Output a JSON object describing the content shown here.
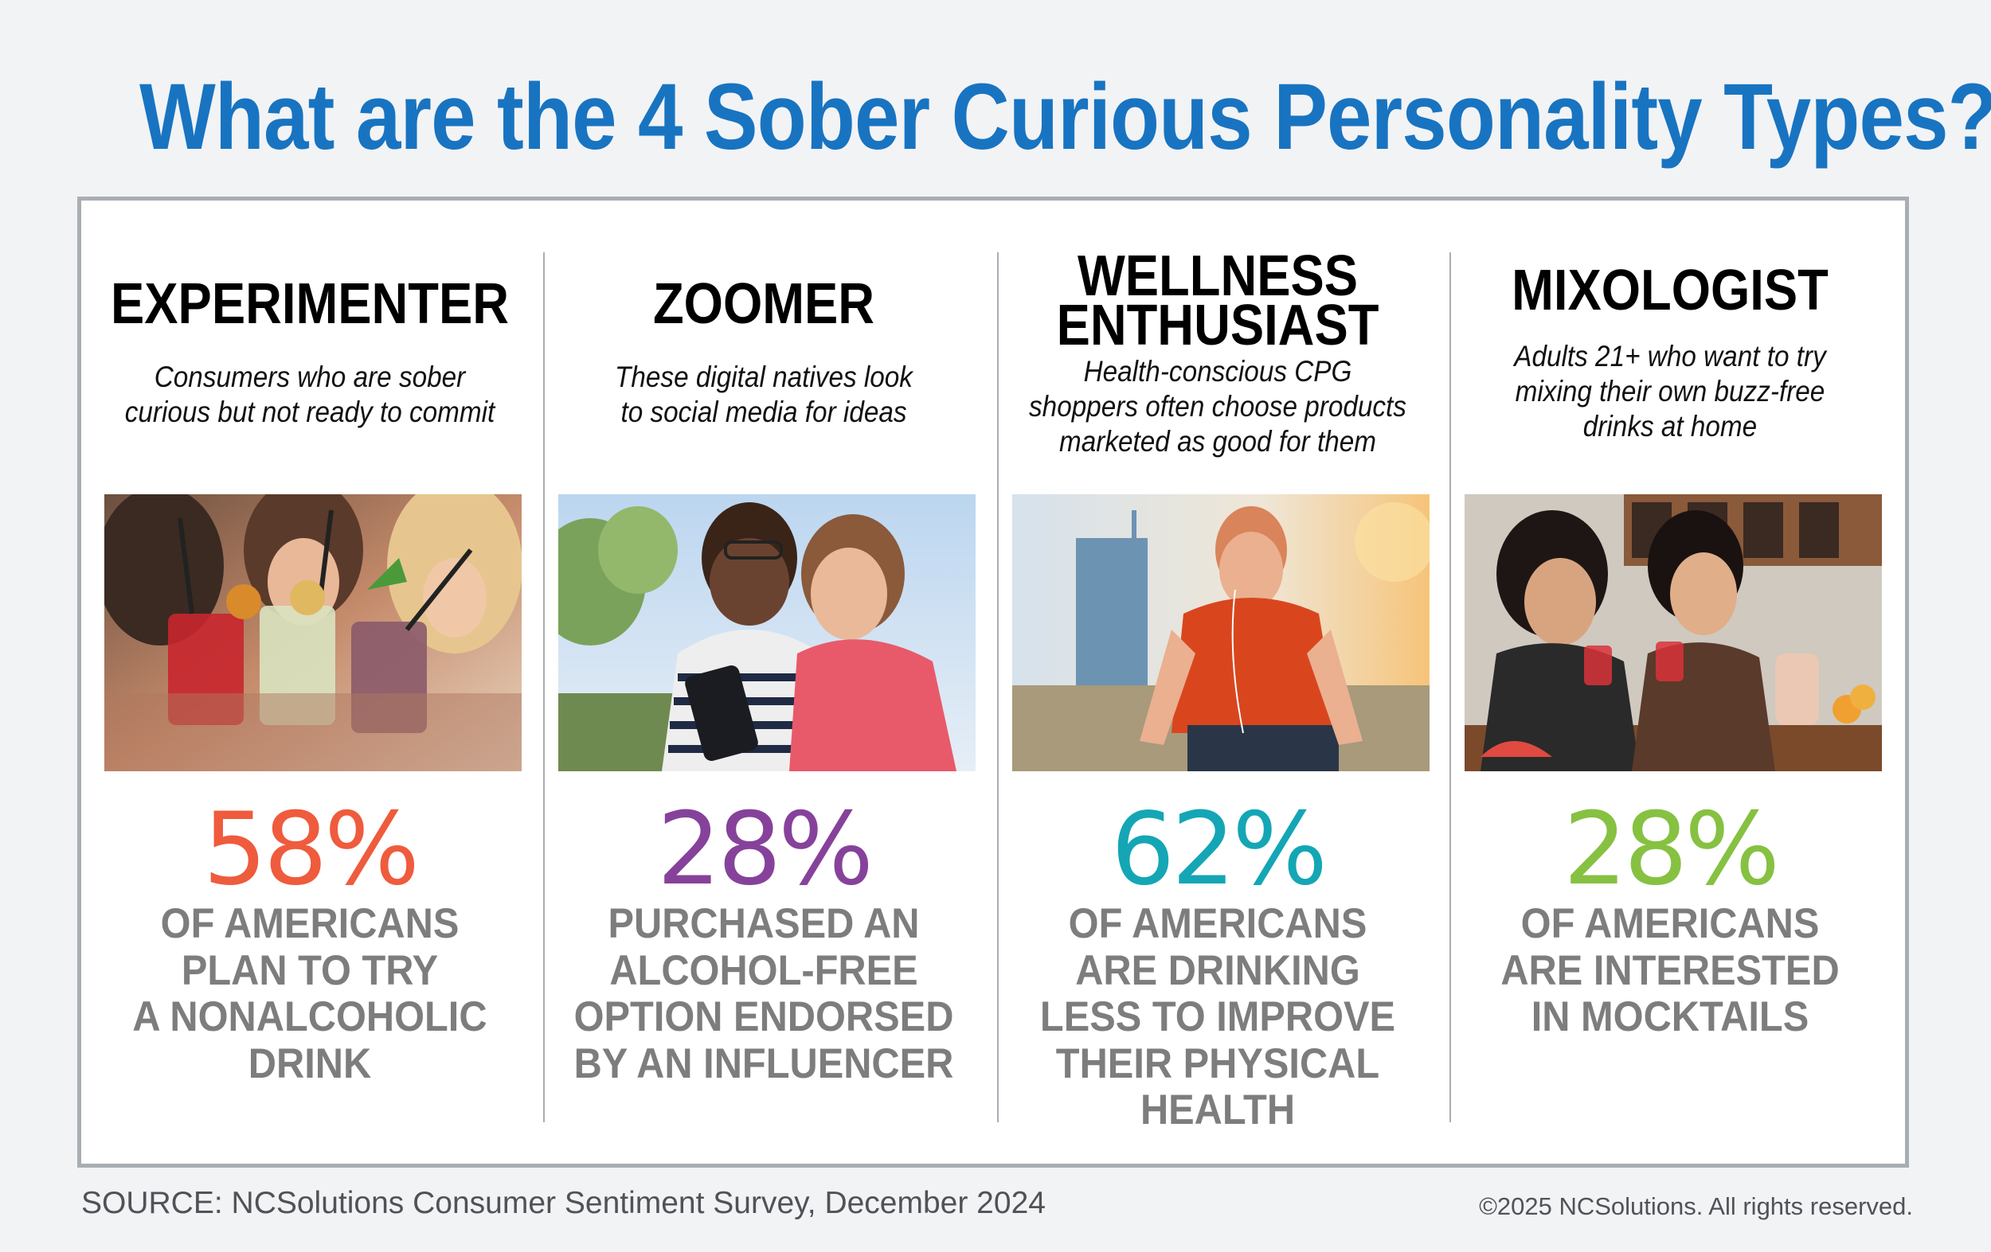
{
  "title": "What are the 4 Sober Curious Personality Types?",
  "columns": [
    {
      "name_lines": [
        "EXPERIMENTER"
      ],
      "desc_lines": [
        "Consumers who are sober",
        "curious but not ready to commit"
      ],
      "percent": "58%",
      "percent_color": "#ef5b3d",
      "stat_lines": [
        "OF AMERICANS",
        "PLAN TO TRY",
        "A NONALCOHOLIC",
        "DRINK"
      ]
    },
    {
      "name_lines": [
        "ZOOMER"
      ],
      "desc_lines": [
        "These digital natives look",
        "to social media for ideas"
      ],
      "percent": "28%",
      "percent_color": "#86429a",
      "stat_lines": [
        "PURCHASED AN",
        "ALCOHOL-FREE",
        "OPTION ENDORSED",
        "BY AN INFLUENCER"
      ]
    },
    {
      "name_lines": [
        "WELLNESS",
        "ENTHUSIAST"
      ],
      "desc_lines": [
        "Health-conscious CPG",
        "shoppers often choose products",
        "marketed as good for them"
      ],
      "percent": "62%",
      "percent_color": "#14a6b5",
      "stat_lines": [
        "OF AMERICANS",
        "ARE DRINKING",
        "LESS TO IMPROVE",
        "THEIR PHYSICAL",
        "HEALTH"
      ]
    },
    {
      "name_lines": [
        "MIXOLOGIST"
      ],
      "desc_lines": [
        "Adults 21+ who want to try",
        "mixing their own buzz-free",
        "drinks at home"
      ],
      "percent": "28%",
      "percent_color": "#86c142",
      "stat_lines": [
        "OF AMERICANS",
        "ARE INTERESTED",
        "IN MOCKTAILS"
      ]
    }
  ],
  "footer": {
    "source": "SOURCE: NCSolutions Consumer Sentiment Survey, December 2024",
    "copyright": "©2025 NCSolutions. All rights reserved."
  }
}
